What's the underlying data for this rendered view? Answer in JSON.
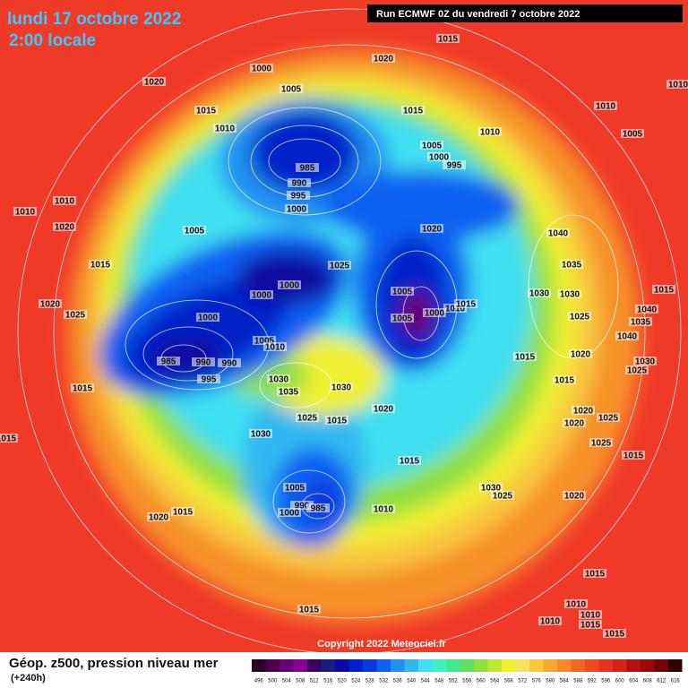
{
  "header": {
    "date": "lundi 17 octobre 2022",
    "time": "2:00 locale",
    "run": "Run ECMWF 0Z du vendredi 7 octobre 2022"
  },
  "copyright": "Copyright 2022 Meteociel.fr",
  "footer": {
    "title": "Géop. z500, pression niveau mer",
    "lead": "(+240h)"
  },
  "isobar_labels": [
    1015,
    1020,
    1000,
    1020,
    1005,
    1015,
    1015,
    1010,
    1010,
    1010,
    1005,
    1005,
    1000,
    995,
    985,
    990,
    995,
    1000,
    1010,
    1010,
    1020,
    1005,
    1020,
    1040,
    1015,
    1025,
    1035,
    1000,
    1000,
    1005,
    1030,
    1030,
    1020,
    1025,
    1015,
    1010,
    1015,
    1000,
    1005,
    1025,
    1040,
    1035,
    1000,
    1005,
    1010,
    1040,
    985,
    990,
    990,
    1015,
    1020,
    1030,
    1025,
    995,
    1030,
    1035,
    1030,
    1015,
    1015,
    1020,
    1020,
    1025,
    1025,
    1015,
    1020,
    1030,
    1015,
    1025,
    1015,
    1015,
    1005,
    1030,
    1025,
    1020,
    990,
    985,
    1000,
    1010,
    1015,
    1020,
    1015,
    1015,
    1010,
    1010,
    1010,
    1015,
    1015,
    1010
  ],
  "legend": {
    "values": [
      496,
      500,
      504,
      508,
      512,
      516,
      520,
      524,
      528,
      532,
      536,
      540,
      544,
      548,
      552,
      556,
      560,
      564,
      568,
      572,
      576,
      580,
      584,
      588,
      592,
      596,
      600,
      604,
      608,
      612,
      616
    ],
    "colors": [
      "#2a0026",
      "#4a004a",
      "#6a0070",
      "#8a0090",
      "#3a0060",
      "#1a1a80",
      "#0a0aa0",
      "#0020c8",
      "#0838e0",
      "#1060f0",
      "#2090f0",
      "#30b8f0",
      "#40e0f0",
      "#40f0c0",
      "#40e890",
      "#60e060",
      "#90e040",
      "#c0e830",
      "#f0f030",
      "#f8e060",
      "#f8c840",
      "#f8a830",
      "#f88828",
      "#f06820",
      "#f04820",
      "#e83020",
      "#d82018",
      "#b81010",
      "#980808",
      "#700404",
      "#300000"
    ]
  }
}
